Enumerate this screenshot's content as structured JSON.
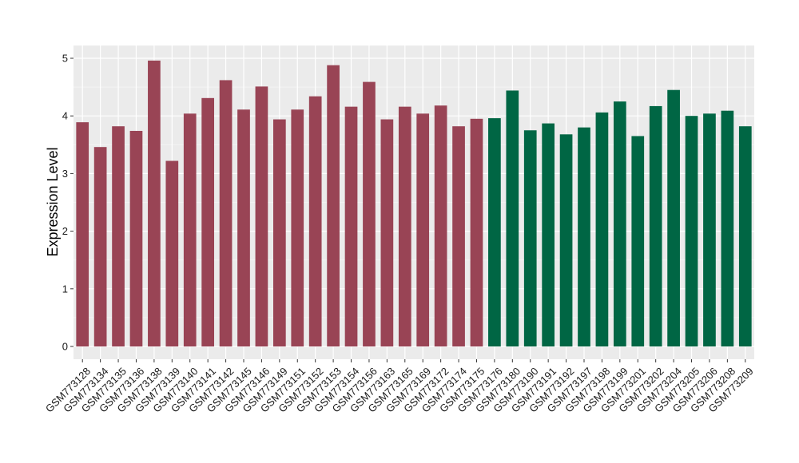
{
  "chart_data": {
    "type": "bar",
    "title": "",
    "xlabel": "",
    "ylabel": "Expression Level",
    "ylim": [
      0,
      5
    ],
    "yticks": [
      0,
      1,
      2,
      3,
      4,
      5
    ],
    "grid": true,
    "legend": "none",
    "colors": {
      "group1": "#994455",
      "group2": "#006644",
      "panel_background": "#ebebeb",
      "grid": "#ffffff"
    },
    "categories": [
      "GSM773128",
      "GSM773134",
      "GSM773135",
      "GSM773136",
      "GSM773138",
      "GSM773139",
      "GSM773140",
      "GSM773141",
      "GSM773142",
      "GSM773145",
      "GSM773146",
      "GSM773149",
      "GSM773151",
      "GSM773152",
      "GSM773153",
      "GSM773154",
      "GSM773156",
      "GSM773163",
      "GSM773165",
      "GSM773169",
      "GSM773172",
      "GSM773174",
      "GSM773175",
      "GSM773176",
      "GSM773180",
      "GSM773190",
      "GSM773191",
      "GSM773192",
      "GSM773197",
      "GSM773198",
      "GSM773199",
      "GSM773201",
      "GSM773202",
      "GSM773204",
      "GSM773205",
      "GSM773206",
      "GSM773208",
      "GSM773209"
    ],
    "values": [
      3.89,
      3.46,
      3.82,
      3.74,
      4.96,
      3.22,
      4.04,
      4.31,
      4.62,
      4.11,
      4.51,
      3.94,
      4.11,
      4.34,
      4.88,
      4.16,
      4.59,
      3.94,
      4.16,
      4.04,
      4.18,
      3.82,
      3.95,
      3.96,
      4.44,
      3.75,
      3.87,
      3.68,
      3.8,
      4.06,
      4.25,
      3.65,
      4.17,
      4.45,
      4.0,
      4.04,
      4.09,
      3.82
    ],
    "groups": [
      1,
      1,
      1,
      1,
      1,
      1,
      1,
      1,
      1,
      1,
      1,
      1,
      1,
      1,
      1,
      1,
      1,
      1,
      1,
      1,
      1,
      1,
      1,
      2,
      2,
      2,
      2,
      2,
      2,
      2,
      2,
      2,
      2,
      2,
      2,
      2,
      2,
      2
    ]
  }
}
